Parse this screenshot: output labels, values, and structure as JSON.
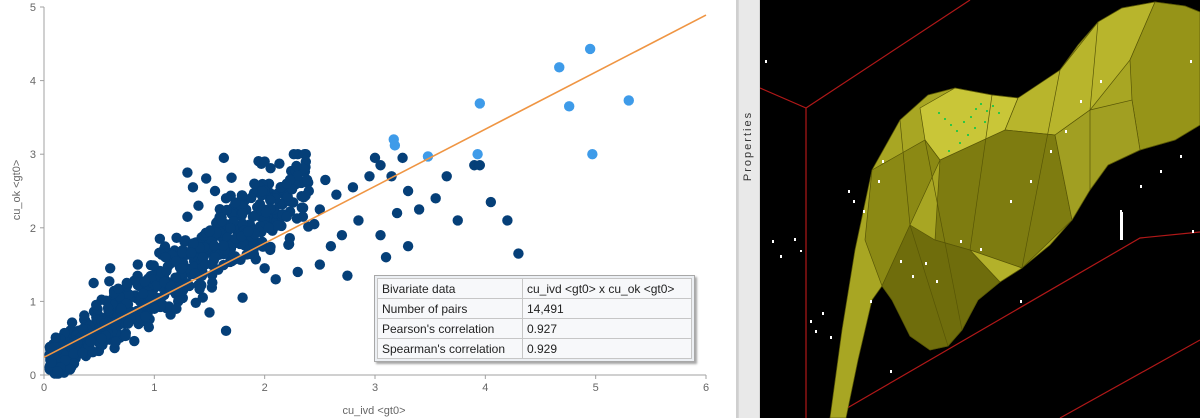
{
  "chart_data": {
    "type": "scatter",
    "title": "",
    "xlabel": "cu_ivd <gt0>",
    "ylabel": "cu_ok <gt0>",
    "xlim": [
      0,
      6
    ],
    "ylim": [
      0,
      5
    ],
    "xticks": [
      "0",
      "1",
      "2",
      "3",
      "4",
      "5",
      "6"
    ],
    "yticks": [
      "0",
      "1",
      "2",
      "3",
      "4",
      "5"
    ],
    "grid": false,
    "regression_line": {
      "intercept": 0.24,
      "slope": 0.775
    },
    "colors": {
      "points": "#053f78",
      "highlight": "#3e9be9",
      "line": "#ef9543"
    },
    "series": [
      {
        "role": "highlight",
        "points": [
          [
            4.95,
            4.43
          ],
          [
            4.67,
            4.18
          ],
          [
            5.3,
            3.73
          ],
          [
            4.76,
            3.65
          ],
          [
            3.95,
            3.69
          ],
          [
            3.17,
            3.2
          ],
          [
            3.18,
            3.12
          ],
          [
            3.48,
            2.97
          ],
          [
            3.93,
            3.0
          ],
          [
            4.97,
            3.0
          ]
        ]
      },
      {
        "role": "main",
        "points": [
          [
            1.63,
            2.95
          ],
          [
            1.97,
            2.87
          ],
          [
            2.0,
            2.9
          ],
          [
            1.4,
            2.3
          ],
          [
            1.55,
            2.5
          ],
          [
            1.8,
            2.2
          ],
          [
            1.47,
            2.67
          ],
          [
            1.65,
            2.4
          ],
          [
            1.7,
            2.68
          ],
          [
            1.3,
            2.75
          ],
          [
            1.35,
            2.55
          ],
          [
            2.2,
            2.6
          ],
          [
            2.4,
            2.5
          ],
          [
            2.5,
            2.25
          ],
          [
            2.65,
            2.45
          ],
          [
            2.8,
            2.55
          ],
          [
            2.95,
            2.7
          ],
          [
            3.0,
            2.95
          ],
          [
            3.05,
            2.85
          ],
          [
            3.15,
            2.7
          ],
          [
            3.3,
            2.5
          ],
          [
            2.7,
            1.9
          ],
          [
            2.85,
            2.1
          ],
          [
            3.05,
            1.9
          ],
          [
            3.3,
            1.75
          ],
          [
            3.4,
            2.25
          ],
          [
            3.55,
            2.4
          ],
          [
            3.75,
            2.1
          ],
          [
            3.9,
            2.85
          ],
          [
            3.95,
            2.85
          ],
          [
            4.05,
            2.35
          ],
          [
            4.2,
            2.1
          ],
          [
            4.3,
            1.65
          ],
          [
            3.25,
            2.95
          ],
          [
            3.65,
            2.7
          ],
          [
            2.3,
            1.4
          ],
          [
            2.5,
            1.5
          ],
          [
            2.45,
            2.05
          ],
          [
            2.1,
            1.3
          ],
          [
            1.8,
            1.05
          ],
          [
            1.5,
            0.85
          ],
          [
            1.2,
            0.9
          ],
          [
            1.0,
            0.9
          ],
          [
            0.9,
            0.95
          ],
          [
            0.3,
            0.45
          ],
          [
            0.15,
            0.1
          ],
          [
            0.12,
            0.05
          ],
          [
            1.65,
            0.6
          ],
          [
            1.1,
            1.6
          ],
          [
            0.85,
            1.5
          ],
          [
            0.75,
            1.25
          ],
          [
            0.45,
            1.25
          ],
          [
            0.6,
            1.45
          ],
          [
            2.55,
            2.65
          ],
          [
            3.1,
            1.6
          ],
          [
            2.75,
            1.35
          ],
          [
            1.5,
            1.95
          ],
          [
            1.25,
            1.45
          ],
          [
            1.85,
            1.95
          ],
          [
            2.05,
            1.7
          ],
          [
            2.2,
            2.15
          ],
          [
            1.3,
            2.15
          ],
          [
            1.05,
            1.85
          ],
          [
            1.55,
            1.6
          ],
          [
            0.55,
            0.7
          ],
          [
            0.35,
            0.3
          ],
          [
            0.7,
            0.9
          ],
          [
            0.95,
            0.65
          ],
          [
            2.0,
            1.45
          ],
          [
            2.6,
            1.75
          ],
          [
            3.2,
            2.2
          ],
          [
            1.15,
            1.2
          ],
          [
            0.65,
            0.45
          ]
        ]
      }
    ],
    "stats_table": {
      "rows": [
        [
          "Bivariate data",
          "cu_ivd <gt0> x cu_ok <gt0>"
        ],
        [
          "Number of pairs",
          "14,491"
        ],
        [
          "Pearson's correlation",
          "0.927"
        ],
        [
          "Spearman's correlation",
          "0.929"
        ]
      ]
    }
  },
  "properties_tab": {
    "label": "Properties"
  },
  "viewer": {
    "colors": {
      "background": "#000000",
      "surface": "#a8a623",
      "box": "#b01818",
      "samples": "#ffffff",
      "samples_high": "#2ec645"
    }
  }
}
